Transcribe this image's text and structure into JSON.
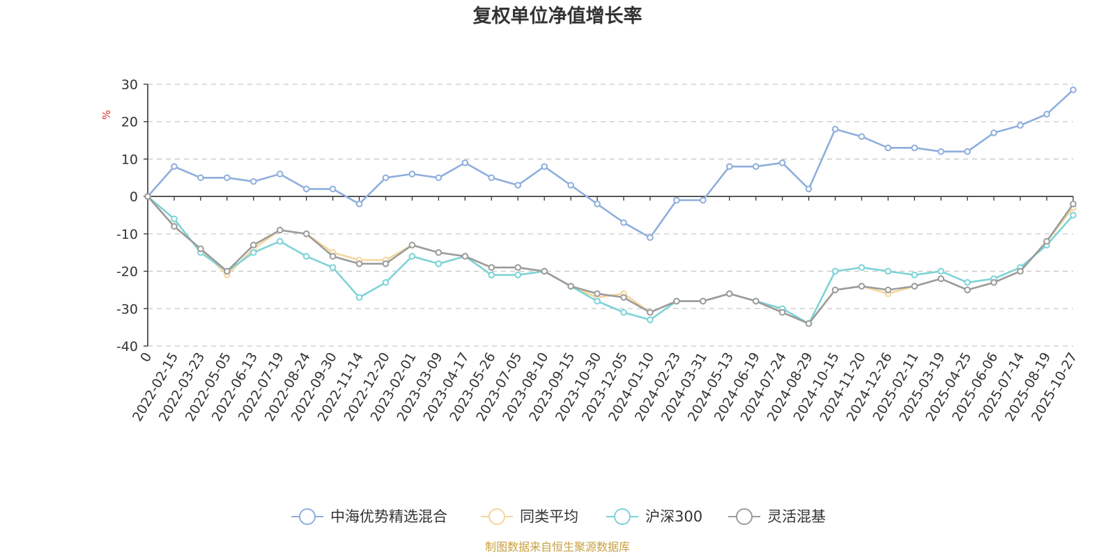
{
  "source_note": "制图数据来自恒生聚源数据库",
  "chart_data": {
    "type": "line",
    "title": "复权单位净值增长率",
    "ylabel": "%",
    "ylim": [
      -40,
      30
    ],
    "yticks": [
      30,
      20,
      10,
      0,
      -10,
      -20,
      -30,
      -40
    ],
    "grid": true,
    "legend_position": "bottom",
    "x": [
      "0",
      "2022-02-15",
      "2022-03-23",
      "2022-05-05",
      "2022-06-13",
      "2022-07-19",
      "2022-08-24",
      "2022-09-30",
      "2022-11-14",
      "2022-12-20",
      "2023-02-01",
      "2023-03-09",
      "2023-04-17",
      "2023-05-26",
      "2023-07-05",
      "2023-08-10",
      "2023-09-15",
      "2023-10-30",
      "2023-12-05",
      "2024-01-10",
      "2024-02-23",
      "2024-03-31",
      "2024-05-13",
      "2024-06-19",
      "2024-07-24",
      "2024-08-29",
      "2024-10-15",
      "2024-11-20",
      "2024-12-26",
      "2025-02-11",
      "2025-03-19",
      "2025-04-25",
      "2025-06-06",
      "2025-07-14",
      "2025-08-19",
      "2025-10-27"
    ],
    "series": [
      {
        "name": "中海优势精选混合",
        "color": "#8eaedc",
        "values": [
          0,
          8,
          5,
          5,
          4,
          6,
          2,
          2,
          -2,
          5,
          6,
          5,
          9,
          5,
          3,
          8,
          3,
          -2,
          -7,
          -11,
          -1,
          -1,
          8,
          8,
          9,
          2,
          18,
          16,
          13,
          13,
          12,
          12,
          17,
          19,
          22,
          28.5
        ]
      },
      {
        "name": "同类平均",
        "color": "#f6d59a",
        "values": [
          0,
          -8,
          -14,
          -21,
          -14,
          -9,
          -10,
          -15,
          -17,
          -17,
          -13,
          -15,
          -16,
          -19,
          -19,
          -20,
          -24,
          -27,
          -26,
          -31,
          -28,
          -28,
          -26,
          -28,
          -31,
          -34,
          -25,
          -24,
          -26,
          -24,
          -22,
          -25,
          -23,
          -20,
          -12,
          -3
        ]
      },
      {
        "name": "沪深300",
        "color": "#7cd3d6",
        "values": [
          0,
          -6,
          -15,
          -20,
          -15,
          -12,
          -16,
          -19,
          -27,
          -23,
          -16,
          -18,
          -16,
          -21,
          -21,
          -20,
          -24,
          -28,
          -31,
          -33,
          -28,
          -28,
          -26,
          -28,
          -30,
          -34,
          -20,
          -19,
          -20,
          -21,
          -20,
          -23,
          -22,
          -19,
          -13,
          -5
        ]
      },
      {
        "name": "灵活混基",
        "color": "#9b9b9b",
        "values": [
          0,
          -8,
          -14,
          -20,
          -13,
          -9,
          -10,
          -16,
          -18,
          -18,
          -13,
          -15,
          -16,
          -19,
          -19,
          -20,
          -24,
          -26,
          -27,
          -31,
          -28,
          -28,
          -26,
          -28,
          -31,
          -34,
          -25,
          -24,
          -25,
          -24,
          -22,
          -25,
          -23,
          -20,
          -12,
          -2
        ]
      }
    ]
  }
}
